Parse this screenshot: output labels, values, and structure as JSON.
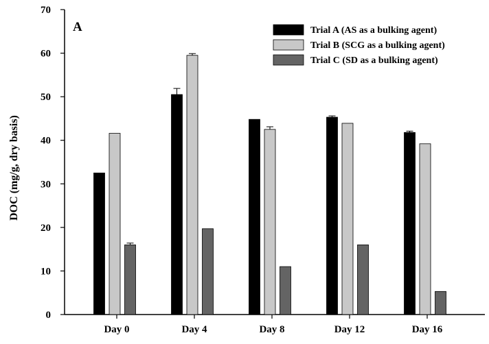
{
  "chart_data": {
    "type": "bar",
    "panel_label": "A",
    "ylabel": "DOC (mg/g, dry basis)",
    "xlabel": "",
    "ylim": [
      0,
      70
    ],
    "yticks": [
      "0",
      "10",
      "20",
      "30",
      "40",
      "50",
      "60",
      "70"
    ],
    "categories": [
      "Day 0",
      "Day 4",
      "Day 8",
      "Day 12",
      "Day 16"
    ],
    "series": [
      {
        "name": "Trial A (AS as a bulking agent)",
        "color": "#000000",
        "values": [
          32.5,
          50.5,
          44.8,
          45.3,
          41.8
        ],
        "errors": [
          0.0,
          1.4,
          0.0,
          0.3,
          0.3
        ]
      },
      {
        "name": "Trial B (SCG as a bulking agent)",
        "color": "#c8c8c8",
        "values": [
          41.6,
          59.5,
          42.5,
          43.9,
          39.2
        ],
        "errors": [
          0.0,
          0.4,
          0.6,
          0.0,
          0.0
        ]
      },
      {
        "name": "Trial C (SD as a bulking agent)",
        "color": "#646464",
        "values": [
          16.0,
          19.7,
          11.0,
          16.0,
          5.3
        ],
        "errors": [
          0.4,
          0.0,
          0.0,
          0.0,
          0.0
        ]
      }
    ],
    "grid": false,
    "legend_position": "top-right"
  }
}
